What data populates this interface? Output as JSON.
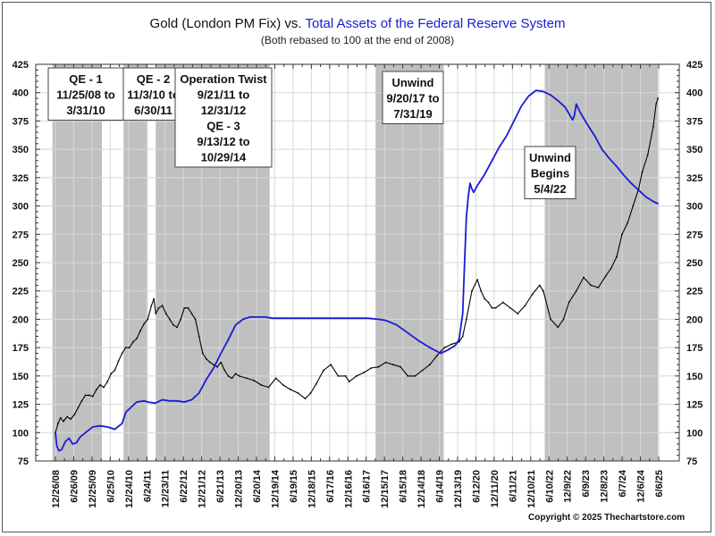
{
  "chart_data": {
    "type": "line",
    "title_part1": "Gold (London PM Fix) vs. ",
    "title_part2": "Total Assets of the Federal Reserve System",
    "subtitle": "(Both rebased to 100 at the end of 2008)",
    "copyright": "Copyright © 2025 Thechartstore.com",
    "ylim": [
      75,
      425
    ],
    "y_ticks": [
      75,
      100,
      125,
      150,
      175,
      200,
      225,
      250,
      275,
      300,
      325,
      350,
      375,
      400,
      425
    ],
    "y_axis_both_sides": true,
    "grid": true,
    "x_tick_labels": [
      "12/26/08",
      "6/26/09",
      "12/25/09",
      "6/25/10",
      "12/24/10",
      "6/24/11",
      "12/23/11",
      "6/22/12",
      "12/21/12",
      "6/21/13",
      "12/20/13",
      "6/20/14",
      "12/19/14",
      "6/19/15",
      "12/18/15",
      "6/17/16",
      "12/16/16",
      "6/16/17",
      "12/15/17",
      "6/15/18",
      "12/14/18",
      "6/14/19",
      "12/13/19",
      "6/12/20",
      "12/11/20",
      "6/11/21",
      "12/10/21",
      "6/10/22",
      "12/9/22",
      "6/9/23",
      "12/8/23",
      "6/7/24",
      "12/6/24",
      "6/6/25"
    ],
    "x_range": [
      2008.98,
      2025.45
    ],
    "shaded_regions": [
      {
        "start": 2008.9,
        "end": 2010.25,
        "label": [
          "QE - 1",
          "11/25/08 to",
          "3/31/10"
        ]
      },
      {
        "start": 2010.84,
        "end": 2011.5,
        "label": [
          "QE - 2",
          "11/3/10 to",
          "6/30/11"
        ]
      },
      {
        "start": 2011.72,
        "end": 2014.83,
        "label": [
          "Operation Twist",
          "9/21/11 to",
          "12/31/12",
          "QE - 3",
          "9/13/12 to",
          "10/29/14"
        ]
      },
      {
        "start": 2017.72,
        "end": 2019.58,
        "label": [
          "Unwind",
          "9/20/17 to",
          "7/31/19"
        ]
      },
      {
        "start": 2022.34,
        "end": 2025.43,
        "label": [
          "Unwind",
          "Begins",
          "5/4/22"
        ]
      }
    ],
    "series": [
      {
        "name": "Gold (London PM Fix)",
        "color": "#000000",
        "x": [
          2008.98,
          2009.05,
          2009.12,
          2009.2,
          2009.3,
          2009.4,
          2009.5,
          2009.6,
          2009.7,
          2009.8,
          2009.9,
          2010.0,
          2010.1,
          2010.2,
          2010.3,
          2010.4,
          2010.5,
          2010.6,
          2010.7,
          2010.8,
          2010.9,
          2011.0,
          2011.1,
          2011.2,
          2011.3,
          2011.4,
          2011.5,
          2011.6,
          2011.67,
          2011.72,
          2011.8,
          2011.9,
          2012.0,
          2012.1,
          2012.2,
          2012.3,
          2012.4,
          2012.5,
          2012.6,
          2012.7,
          2012.8,
          2012.9,
          2013.0,
          2013.1,
          2013.2,
          2013.3,
          2013.4,
          2013.5,
          2013.6,
          2013.7,
          2013.8,
          2013.9,
          2014.0,
          2014.2,
          2014.4,
          2014.6,
          2014.8,
          2015.0,
          2015.2,
          2015.4,
          2015.6,
          2015.8,
          2015.95,
          2016.1,
          2016.3,
          2016.5,
          2016.7,
          2016.9,
          2017.0,
          2017.2,
          2017.4,
          2017.6,
          2017.8,
          2018.0,
          2018.2,
          2018.4,
          2018.6,
          2018.8,
          2019.0,
          2019.2,
          2019.4,
          2019.6,
          2019.8,
          2020.0,
          2020.1,
          2020.2,
          2020.35,
          2020.5,
          2020.6,
          2020.7,
          2020.8,
          2020.9,
          2021.0,
          2021.2,
          2021.4,
          2021.6,
          2021.8,
          2022.0,
          2022.2,
          2022.3,
          2022.5,
          2022.7,
          2022.85,
          2023.0,
          2023.2,
          2023.4,
          2023.6,
          2023.8,
          2024.0,
          2024.15,
          2024.3,
          2024.45,
          2024.6,
          2024.75,
          2024.9,
          2025.0,
          2025.15,
          2025.3,
          2025.38,
          2025.43
        ],
        "values": [
          100,
          108,
          113,
          110,
          114,
          112,
          116,
          122,
          128,
          133,
          133,
          132,
          138,
          142,
          140,
          145,
          152,
          155,
          163,
          170,
          175,
          175,
          180,
          183,
          190,
          196,
          200,
          212,
          218,
          205,
          210,
          212,
          205,
          200,
          195,
          193,
          200,
          210,
          210,
          205,
          200,
          185,
          170,
          165,
          162,
          160,
          158,
          162,
          155,
          150,
          148,
          152,
          150,
          148,
          146,
          142,
          140,
          148,
          142,
          138,
          135,
          130,
          135,
          143,
          155,
          160,
          150,
          150,
          145,
          150,
          153,
          157,
          158,
          162,
          160,
          158,
          150,
          150,
          155,
          160,
          168,
          175,
          178,
          180,
          185,
          200,
          225,
          235,
          225,
          218,
          215,
          210,
          210,
          215,
          210,
          205,
          212,
          222,
          230,
          225,
          200,
          193,
          200,
          215,
          225,
          237,
          230,
          228,
          238,
          245,
          255,
          275,
          285,
          300,
          315,
          330,
          345,
          370,
          390,
          395
        ]
      },
      {
        "name": "Total Assets of the Federal Reserve System",
        "color": "#1a1ad6",
        "x": [
          2008.98,
          2009.02,
          2009.08,
          2009.15,
          2009.25,
          2009.35,
          2009.45,
          2009.55,
          2009.65,
          2009.8,
          2010.0,
          2010.2,
          2010.4,
          2010.6,
          2010.8,
          2010.9,
          2011.0,
          2011.2,
          2011.4,
          2011.5,
          2011.7,
          2011.9,
          2012.1,
          2012.3,
          2012.5,
          2012.7,
          2012.9,
          2013.1,
          2013.3,
          2013.5,
          2013.7,
          2013.9,
          2014.1,
          2014.3,
          2014.5,
          2014.7,
          2014.9,
          2015.5,
          2016.0,
          2016.5,
          2017.0,
          2017.5,
          2017.8,
          2018.0,
          2018.3,
          2018.6,
          2018.9,
          2019.2,
          2019.5,
          2019.7,
          2019.9,
          2020.0,
          2020.1,
          2020.15,
          2020.2,
          2020.25,
          2020.3,
          2020.35,
          2020.4,
          2020.5,
          2020.7,
          2020.9,
          2021.1,
          2021.3,
          2021.5,
          2021.7,
          2021.9,
          2022.1,
          2022.3,
          2022.5,
          2022.7,
          2022.9,
          2023.1,
          2023.15,
          2023.2,
          2023.3,
          2023.5,
          2023.7,
          2023.9,
          2024.1,
          2024.3,
          2024.5,
          2024.7,
          2024.9,
          2025.1,
          2025.3,
          2025.43
        ],
        "values": [
          100,
          88,
          84,
          85,
          92,
          95,
          90,
          91,
          96,
          100,
          105,
          106,
          105,
          103,
          108,
          118,
          121,
          127,
          128,
          127,
          126,
          129,
          128,
          128,
          127,
          129,
          135,
          147,
          157,
          170,
          182,
          195,
          200,
          202,
          202,
          202,
          201,
          201,
          201,
          201,
          201,
          201,
          200,
          199,
          195,
          188,
          181,
          175,
          170,
          173,
          177,
          182,
          205,
          250,
          290,
          308,
          320,
          315,
          312,
          318,
          328,
          340,
          352,
          362,
          375,
          388,
          397,
          402,
          401,
          398,
          393,
          387,
          376,
          380,
          390,
          383,
          372,
          362,
          350,
          342,
          335,
          327,
          320,
          314,
          308,
          304,
          302
        ]
      }
    ]
  }
}
